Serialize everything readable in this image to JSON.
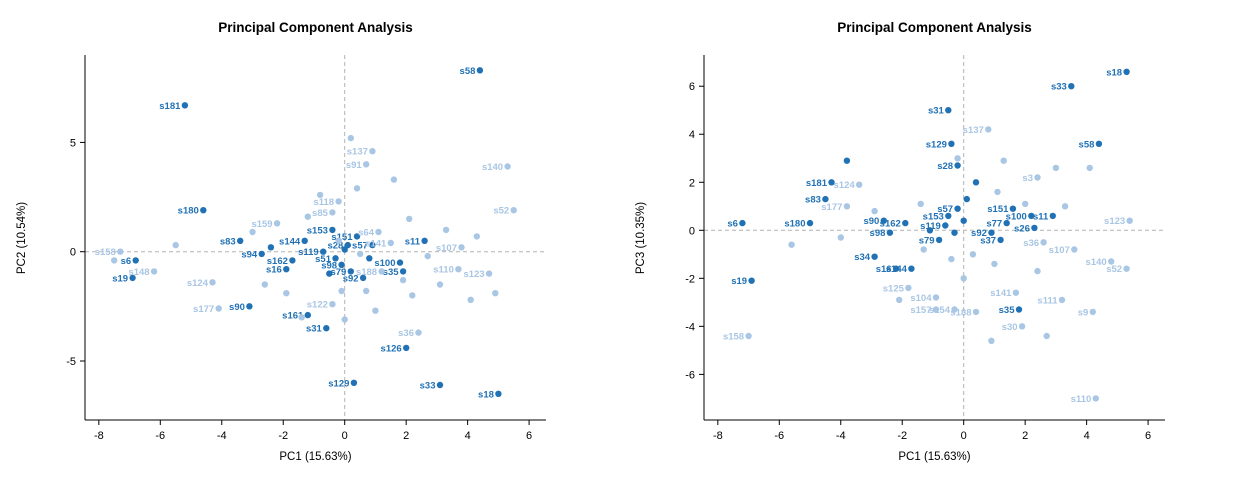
{
  "figure": {
    "background": "#ffffff"
  },
  "colors": {
    "dark_points": "#2171b5",
    "light_points": "#a9c6e4",
    "grid_dash": "#b3b3b3",
    "axis": "#000000"
  },
  "chart_data": [
    {
      "type": "scatter",
      "title": "Principal Component Analysis",
      "xlabel": "PC1 (15.63%)",
      "ylabel": "PC2 (10.54%)",
      "xlim": [
        -8.45,
        6.55
      ],
      "ylim": [
        -7.7,
        9.0
      ],
      "xticks": [
        -8,
        -6,
        -4,
        -2,
        0,
        2,
        4,
        6
      ],
      "yticks": [
        -5,
        0,
        5
      ],
      "grid": "dashed zero lines",
      "legend": "none",
      "series": [
        {
          "name": "dark-group",
          "color": "#2171b5",
          "points": [
            [
              4.4,
              8.3,
              "s58"
            ],
            [
              -5.2,
              6.7,
              "s181"
            ],
            [
              -4.6,
              1.9,
              "s180"
            ],
            [
              -3.4,
              0.5,
              "s83"
            ],
            [
              -2.7,
              -0.1,
              "s94"
            ],
            [
              -6.8,
              -0.4,
              "s6"
            ],
            [
              -6.9,
              -1.2,
              "s19"
            ],
            [
              -3.1,
              -2.5,
              "s90"
            ],
            [
              -1.2,
              -2.9,
              "s161"
            ],
            [
              -0.6,
              -3.5,
              "s31"
            ],
            [
              0.3,
              -6.0,
              "s129"
            ],
            [
              2.0,
              -4.4,
              "s126"
            ],
            [
              3.1,
              -6.1,
              "s33"
            ],
            [
              5.0,
              -6.5,
              "s18"
            ],
            [
              1.9,
              -0.9,
              "s35"
            ],
            [
              1.8,
              -0.5,
              "s100"
            ],
            [
              2.6,
              0.5,
              "s11"
            ],
            [
              -1.3,
              0.5,
              "s144"
            ],
            [
              -1.7,
              -0.4,
              "s162"
            ],
            [
              -1.9,
              -0.8,
              "s16"
            ],
            [
              0.6,
              -1.2,
              "s92"
            ],
            [
              0.9,
              0.3,
              "s57"
            ],
            [
              0.4,
              0.7,
              "s151"
            ],
            [
              -0.4,
              1.0,
              "s153"
            ],
            [
              -0.7,
              0.0,
              "s119"
            ],
            [
              -0.3,
              -0.3,
              "s51"
            ],
            [
              -0.1,
              -0.6,
              "s98"
            ],
            [
              0.2,
              -0.9,
              "s79"
            ],
            [
              0.1,
              0.3,
              "s28"
            ],
            [
              0.0,
              0.1,
              ""
            ],
            [
              -0.5,
              -1.0,
              ""
            ],
            [
              0.8,
              -0.3,
              ""
            ],
            [
              -2.4,
              0.2,
              ""
            ]
          ]
        },
        {
          "name": "light-group",
          "color": "#a9c6e4",
          "points": [
            [
              -7.3,
              0.0,
              "s158"
            ],
            [
              -6.2,
              -0.9,
              "s148"
            ],
            [
              -4.3,
              -1.4,
              "s124"
            ],
            [
              -4.1,
              -2.6,
              "s177"
            ],
            [
              -2.2,
              1.3,
              "s159"
            ],
            [
              -0.2,
              2.3,
              "s118"
            ],
            [
              -0.4,
              1.8,
              "s85"
            ],
            [
              0.9,
              4.6,
              "s137"
            ],
            [
              0.7,
              4.0,
              "s91"
            ],
            [
              5.3,
              3.9,
              "s140"
            ],
            [
              5.5,
              1.9,
              "s52"
            ],
            [
              3.8,
              0.2,
              "s107"
            ],
            [
              3.7,
              -0.8,
              "s110"
            ],
            [
              4.7,
              -1.0,
              "s123"
            ],
            [
              1.2,
              -0.9,
              "s188"
            ],
            [
              -0.4,
              -2.4,
              "s122"
            ],
            [
              2.4,
              -3.7,
              "s36"
            ],
            [
              1.1,
              0.9,
              "s64"
            ],
            [
              1.5,
              0.4,
              "s141"
            ],
            [
              0.2,
              5.2,
              ""
            ],
            [
              -0.8,
              2.6,
              ""
            ],
            [
              -1.2,
              1.6,
              ""
            ],
            [
              -3.0,
              0.9,
              ""
            ],
            [
              -5.5,
              0.3,
              ""
            ],
            [
              -7.5,
              -0.4,
              ""
            ],
            [
              -2.6,
              -1.5,
              ""
            ],
            [
              -1.9,
              -1.9,
              ""
            ],
            [
              -1.4,
              -3.0,
              ""
            ],
            [
              0.0,
              -3.1,
              ""
            ],
            [
              1.0,
              -2.7,
              ""
            ],
            [
              2.2,
              -2.0,
              ""
            ],
            [
              3.1,
              -1.5,
              ""
            ],
            [
              4.1,
              -2.2,
              ""
            ],
            [
              2.7,
              -0.2,
              ""
            ],
            [
              3.3,
              1.0,
              ""
            ],
            [
              2.1,
              1.5,
              ""
            ],
            [
              1.6,
              3.3,
              ""
            ],
            [
              0.4,
              2.9,
              ""
            ],
            [
              -0.1,
              -1.8,
              ""
            ],
            [
              0.7,
              -1.8,
              ""
            ],
            [
              1.9,
              -1.3,
              ""
            ],
            [
              4.3,
              0.7,
              ""
            ],
            [
              0.5,
              -0.1,
              ""
            ],
            [
              -0.2,
              0.5,
              ""
            ],
            [
              4.9,
              -1.9,
              ""
            ]
          ]
        }
      ]
    },
    {
      "type": "scatter",
      "title": "Principal Component Analysis",
      "xlabel": "PC1 (15.63%)",
      "ylabel": "PC3 (10.35%)",
      "xlim": [
        -8.45,
        6.55
      ],
      "ylim": [
        -7.9,
        7.3
      ],
      "xticks": [
        -8,
        -6,
        -4,
        -2,
        0,
        2,
        4,
        6
      ],
      "yticks": [
        -6,
        -4,
        -2,
        0,
        2,
        4,
        6
      ],
      "grid": "dashed zero lines",
      "legend": "none",
      "series": [
        {
          "name": "dark-group",
          "color": "#2171b5",
          "points": [
            [
              5.3,
              6.6,
              "s18"
            ],
            [
              3.5,
              6.0,
              "s33"
            ],
            [
              4.4,
              3.6,
              "s58"
            ],
            [
              -0.5,
              5.0,
              "s31"
            ],
            [
              -0.4,
              3.6,
              "s129"
            ],
            [
              -0.2,
              2.7,
              "s28"
            ],
            [
              -4.3,
              2.0,
              "s181"
            ],
            [
              -4.5,
              1.3,
              "s83"
            ],
            [
              -5.0,
              0.3,
              "s180"
            ],
            [
              -7.2,
              0.3,
              "s6"
            ],
            [
              -6.9,
              -2.1,
              "s19"
            ],
            [
              -2.6,
              0.4,
              "s90"
            ],
            [
              -2.4,
              -0.1,
              "s98"
            ],
            [
              -2.9,
              -1.1,
              "s34"
            ],
            [
              -2.2,
              -1.6,
              "s16"
            ],
            [
              -1.7,
              -1.6,
              "s144"
            ],
            [
              -1.9,
              0.3,
              "s162"
            ],
            [
              1.6,
              0.9,
              "s151"
            ],
            [
              2.2,
              0.6,
              "s100"
            ],
            [
              2.9,
              0.6,
              "s11"
            ],
            [
              1.4,
              0.3,
              "s77"
            ],
            [
              2.3,
              0.1,
              "s26"
            ],
            [
              1.2,
              -0.4,
              "s37"
            ],
            [
              0.9,
              -0.1,
              "s92"
            ],
            [
              1.8,
              -3.3,
              "s35"
            ],
            [
              -0.8,
              -0.4,
              "s79"
            ],
            [
              -0.2,
              0.9,
              "s57"
            ],
            [
              -0.5,
              0.6,
              "s153"
            ],
            [
              -0.6,
              0.2,
              "s119"
            ],
            [
              -3.8,
              2.9,
              ""
            ],
            [
              0.4,
              2.0,
              ""
            ],
            [
              -1.1,
              0.0,
              ""
            ],
            [
              0.1,
              1.3,
              ""
            ],
            [
              0.0,
              0.4,
              ""
            ],
            [
              -0.3,
              -0.1,
              ""
            ]
          ]
        },
        {
          "name": "light-group",
          "color": "#a9c6e4",
          "points": [
            [
              0.8,
              4.2,
              "s137"
            ],
            [
              -3.4,
              1.9,
              "s124"
            ],
            [
              -3.8,
              1.0,
              "s177"
            ],
            [
              2.4,
              2.2,
              "s3"
            ],
            [
              5.4,
              0.4,
              "s123"
            ],
            [
              3.6,
              -0.8,
              "s107"
            ],
            [
              4.8,
              -1.3,
              "s140"
            ],
            [
              5.3,
              -1.6,
              "s52"
            ],
            [
              1.9,
              -4.0,
              "s30"
            ],
            [
              1.7,
              -2.6,
              "s141"
            ],
            [
              3.2,
              -2.9,
              "s111"
            ],
            [
              4.2,
              -3.4,
              "s9"
            ],
            [
              0.4,
              -3.4,
              "s188"
            ],
            [
              -0.3,
              -3.3,
              "s154"
            ],
            [
              -0.9,
              -3.3,
              "s157"
            ],
            [
              -1.8,
              -2.4,
              "s125"
            ],
            [
              -0.9,
              -2.8,
              "s104"
            ],
            [
              -7.0,
              -4.4,
              "s158"
            ],
            [
              4.3,
              -7.0,
              "s110"
            ],
            [
              2.6,
              -0.5,
              "s36"
            ],
            [
              3.0,
              2.6,
              ""
            ],
            [
              1.1,
              1.6,
              ""
            ],
            [
              2.0,
              1.1,
              ""
            ],
            [
              -0.2,
              3.0,
              ""
            ],
            [
              -1.4,
              1.1,
              ""
            ],
            [
              -2.9,
              0.8,
              ""
            ],
            [
              -4.0,
              -0.3,
              ""
            ],
            [
              -1.3,
              -0.8,
              ""
            ],
            [
              -0.4,
              -1.2,
              ""
            ],
            [
              0.3,
              -1.0,
              ""
            ],
            [
              1.0,
              -1.4,
              ""
            ],
            [
              2.4,
              -1.7,
              ""
            ],
            [
              0.9,
              -4.6,
              ""
            ],
            [
              2.7,
              -4.4,
              ""
            ],
            [
              3.3,
              1.0,
              ""
            ],
            [
              4.1,
              2.6,
              ""
            ],
            [
              -5.6,
              -0.6,
              ""
            ],
            [
              -2.1,
              -2.9,
              ""
            ],
            [
              0.0,
              -2.0,
              ""
            ],
            [
              1.3,
              2.9,
              ""
            ]
          ]
        }
      ]
    }
  ]
}
